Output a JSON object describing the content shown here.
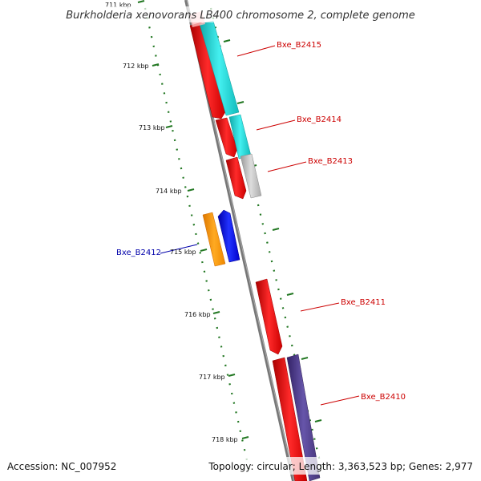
{
  "title": "Burkholderia xenovorans LB400 chromosome 2, complete genome",
  "ticks": [
    "711 kbp",
    "712 kbp",
    "713 kbp",
    "714 kbp",
    "715 kbp",
    "716 kbp",
    "717 kbp",
    "718 kbp"
  ],
  "genes": [
    {
      "name": "Bxe_B2415",
      "color": "#cc0000"
    },
    {
      "name": "Bxe_B2414",
      "color": "#cc0000"
    },
    {
      "name": "Bxe_B2413",
      "color": "#cc0000"
    },
    {
      "name": "Bxe_B2412",
      "color": "#0000aa"
    },
    {
      "name": "Bxe_B2411",
      "color": "#cc0000"
    },
    {
      "name": "Bxe_B2410",
      "color": "#cc0000"
    }
  ],
  "colors": {
    "cds": "#ff0000",
    "reverse_cds": "#0000ff",
    "orange": "#ff9900",
    "cyan": "#22cccc",
    "grey": "#bbbbbb",
    "slate": "#554488",
    "backbone": "#777777",
    "tick": "#227722"
  },
  "footer": {
    "accession": "Accession: NC_007952",
    "summary": "Topology: circular; Length: 3,363,523 bp; Genes: 2,977"
  }
}
